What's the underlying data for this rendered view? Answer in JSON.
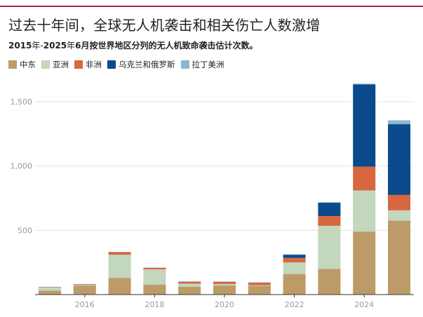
{
  "title": "过去十年间，全球无人机袭击和相关伤亡人数激增",
  "subtitle": {
    "p1": "2015",
    "p2": "年-",
    "p3": "2025",
    "p4": "年",
    "p5": "6",
    "p6": "月按世界地区分列的无人机致命袭击估计次数。"
  },
  "colors": {
    "middle_east": "#bc9b68",
    "asia": "#c2d7bc",
    "africa": "#d8663f",
    "ukraine_russia": "#0b4a8c",
    "latin_america": "#8bb7d0"
  },
  "chart_data": {
    "type": "bar",
    "stacked": true,
    "categories": [
      "2015",
      "2016",
      "2017",
      "2018",
      "2019",
      "2020",
      "2021",
      "2022",
      "2023",
      "2024",
      "2025"
    ],
    "series": [
      {
        "name": "中东",
        "key": "middle_east",
        "values": [
          30,
          70,
          130,
          78,
          60,
          72,
          68,
          160,
          200,
          490,
          575
        ]
      },
      {
        "name": "亚洲",
        "key": "asia",
        "values": [
          25,
          5,
          180,
          118,
          25,
          10,
          5,
          90,
          335,
          320,
          80
        ]
      },
      {
        "name": "非洲",
        "key": "africa",
        "values": [
          3,
          5,
          20,
          12,
          15,
          18,
          20,
          35,
          75,
          185,
          120
        ]
      },
      {
        "name": "乌克兰和俄罗斯",
        "key": "ukraine_russia",
        "values": [
          0,
          0,
          0,
          0,
          0,
          0,
          0,
          25,
          105,
          640,
          550
        ]
      },
      {
        "name": "拉丁美洲",
        "key": "latin_america",
        "values": [
          2,
          2,
          2,
          2,
          3,
          2,
          2,
          3,
          2,
          5,
          30
        ]
      }
    ],
    "y_ticks": [
      "500",
      "1,000",
      "1,500"
    ],
    "y_tick_values": [
      500,
      1000,
      1500
    ],
    "x_ticks": [
      "2016",
      "2018",
      "2020",
      "2022",
      "2024"
    ],
    "ylim": [
      0,
      1650
    ],
    "grid": true,
    "legend_position": "top-left"
  }
}
